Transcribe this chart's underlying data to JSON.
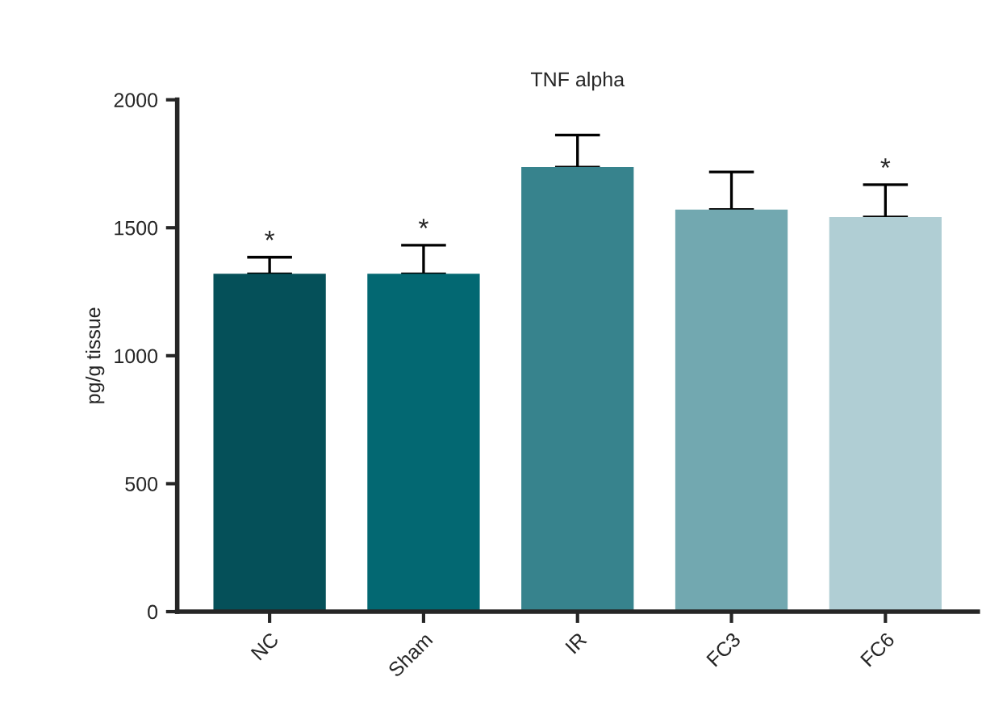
{
  "chart_data": {
    "type": "bar",
    "title": "TNF alpha",
    "ylabel": "pg/g tissue",
    "categories": [
      "NC",
      "Sham",
      "IR",
      "FC3",
      "FC6"
    ],
    "values": [
      1320,
      1320,
      1737,
      1571,
      1542
    ],
    "errors": [
      [
        1320,
        1385
      ],
      [
        1320,
        1432
      ],
      [
        1737,
        1862
      ],
      [
        1571,
        1718
      ],
      [
        1542,
        1668
      ]
    ],
    "colors": [
      "#055059",
      "#036872",
      "#37838d",
      "#72a8b0",
      "#b0ced4"
    ],
    "ylim": [
      0,
      2000
    ],
    "yticks": [
      0,
      500,
      1000,
      1500,
      2000
    ],
    "grid": false,
    "annotations": [
      {
        "text": "*",
        "x": "NC",
        "y": 1385
      },
      {
        "text": "*",
        "x": "Sham",
        "y": 1432
      },
      {
        "text": "*",
        "x": "FC6",
        "y": 1668
      }
    ]
  }
}
